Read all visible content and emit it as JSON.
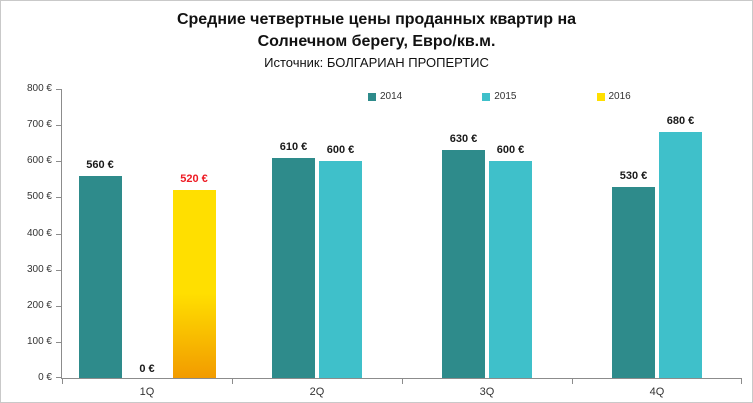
{
  "title_line1": "Средние четвертные цены проданных квартир на",
  "title_line2": "Солнечном берегу, Евро/кв.м.",
  "subtitle": "Источник: БОЛГАРИАН ПРОПЕРТИС",
  "chart_data": {
    "type": "bar",
    "title": "Средние четвертные цены проданных квартир на Солнечном берегу, Евро/кв.м.",
    "subtitle": "Источник: БОЛГАРИАН ПРОПЕРТИС",
    "categories": [
      "1Q",
      "2Q",
      "3Q",
      "4Q"
    ],
    "series": [
      {
        "name": "2014",
        "color": "#2e8b8b",
        "label_color": "#1a1a1a",
        "values": [
          560,
          610,
          630,
          530
        ]
      },
      {
        "name": "2015",
        "color": "#3fc0ca",
        "label_color": "#1a1a1a",
        "values": [
          0,
          600,
          600,
          680
        ]
      },
      {
        "name": "2016",
        "color": "#ffdf00",
        "color_bottom": "#f29b00",
        "label_color": "#ee1c25",
        "values": [
          520,
          null,
          null,
          null
        ]
      }
    ],
    "ylim": [
      0,
      800
    ],
    "ytick_step": 100,
    "currency_suffix": " €",
    "legend_position": "top",
    "grid": false
  }
}
